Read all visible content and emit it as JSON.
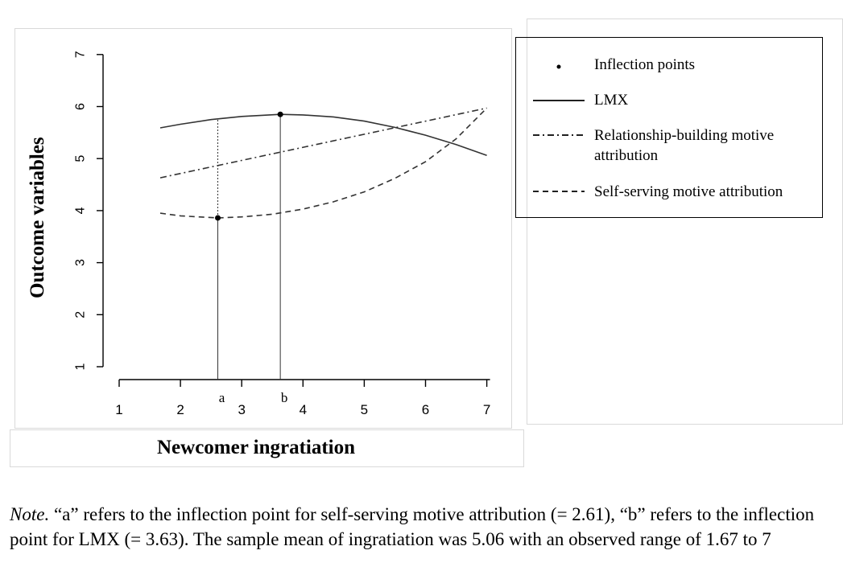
{
  "chart_data": {
    "type": "line",
    "xlabel": "Newcomer ingratiation",
    "ylabel": "Outcome variables",
    "xlim": [
      1,
      7
    ],
    "ylim": [
      1,
      7
    ],
    "x_ticks": [
      "1",
      "2",
      "3",
      "4",
      "5",
      "6",
      "7"
    ],
    "y_ticks": [
      "1",
      "2",
      "3",
      "4",
      "5",
      "6",
      "7"
    ],
    "series": [
      {
        "name": "LMX",
        "style": "solid",
        "x": [
          1.67,
          2.0,
          2.5,
          3.0,
          3.63,
          4.0,
          4.5,
          5.0,
          5.5,
          6.0,
          6.5,
          7.0
        ],
        "y": [
          5.59,
          5.66,
          5.75,
          5.81,
          5.85,
          5.84,
          5.8,
          5.72,
          5.6,
          5.45,
          5.27,
          5.06
        ]
      },
      {
        "name": "Relationship-building motive attribution",
        "style": "dot-dash",
        "x": [
          1.67,
          7.0
        ],
        "y": [
          4.63,
          5.97
        ]
      },
      {
        "name": "Self-serving motive attribution",
        "style": "dashed",
        "x": [
          1.67,
          2.0,
          2.61,
          3.0,
          3.5,
          4.0,
          4.5,
          5.0,
          5.5,
          6.0,
          6.5,
          7.0
        ],
        "y": [
          3.95,
          3.9,
          3.86,
          3.88,
          3.93,
          4.03,
          4.17,
          4.36,
          4.62,
          4.94,
          5.38,
          5.97
        ]
      }
    ],
    "inflection_points": [
      {
        "label": "a",
        "x": 2.61,
        "y": 3.86,
        "line_top": 5.77
      },
      {
        "label": "b",
        "x": 3.63,
        "y": 5.85,
        "line_top": 5.85
      }
    ],
    "legend": {
      "placement": "right",
      "entries": [
        {
          "symbol": "point",
          "label": "Inflection points"
        },
        {
          "symbol": "solid",
          "label": "LMX"
        },
        {
          "symbol": "dot-dash",
          "label": "Relationship-building motive attribution"
        },
        {
          "symbol": "dashed",
          "label": "Self-serving motive attribution"
        }
      ]
    },
    "colors": {
      "ink": "#000000",
      "line": "#333333"
    }
  },
  "note": {
    "prefix": "Note.",
    "text": " “a” refers to the inflection point for self-serving motive attribution (= 2.61), “b” refers to the inflection point for LMX (= 3.63). The sample mean of ingratiation was 5.06 with an observed range of 1.67 to 7"
  }
}
